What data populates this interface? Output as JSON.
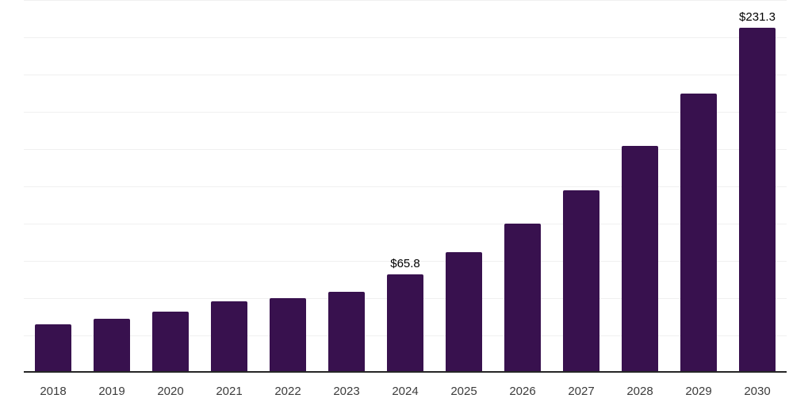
{
  "chart_data": {
    "type": "bar",
    "title": "",
    "xlabel": "",
    "ylabel": "",
    "categories": [
      "2018",
      "2019",
      "2020",
      "2021",
      "2022",
      "2023",
      "2024",
      "2025",
      "2026",
      "2027",
      "2028",
      "2029",
      "2030"
    ],
    "values": [
      32.3,
      36.0,
      40.9,
      47.8,
      50.0,
      54.3,
      65.8,
      81.1,
      99.9,
      122.5,
      152.0,
      187.4,
      231.3
    ],
    "data_labels": [
      {
        "category": "2024",
        "text": "$65.8"
      },
      {
        "category": "2030",
        "text": "$231.3"
      }
    ],
    "ylim": [
      0,
      250
    ],
    "gridline_step": 25,
    "grid": "horizontal-only",
    "legend": "none",
    "y_tick_labels_visible": false,
    "colors": {
      "bar": "#38114e",
      "axis_line": "#262626",
      "gridline": "#f0f0f0",
      "x_tick_label": "#3c3c3c",
      "data_label": "#000000",
      "background": "#ffffff"
    }
  }
}
